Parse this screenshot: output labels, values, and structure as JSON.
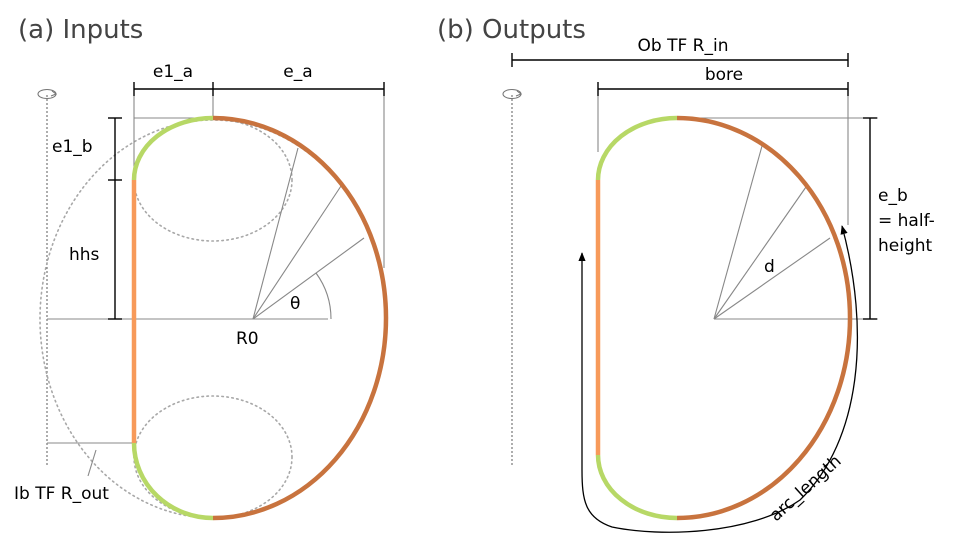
{
  "panels": {
    "inputs": {
      "title": "(a) Inputs",
      "labels": {
        "e1_a": "e1_a",
        "e_a": "e_a",
        "e1_b": "e1_b",
        "hhs": "hhs",
        "theta": "θ",
        "r0": "R0",
        "ib_tf_r_out": "Ib TF R_out"
      }
    },
    "outputs": {
      "title": "(b) Outputs",
      "labels": {
        "ob_tf_r_in": "Ob TF R_in",
        "bore": "bore",
        "e_b_line1": "e_b",
        "e_b_line2": "= half-",
        "e_b_line3": "height",
        "d": "d",
        "arc_length": "arc_length"
      }
    }
  },
  "colors": {
    "straight_segment": "#f79a5a",
    "inner_ellipse_segment": "#b7d866",
    "outer_ellipse_segment": "#c8733e"
  }
}
